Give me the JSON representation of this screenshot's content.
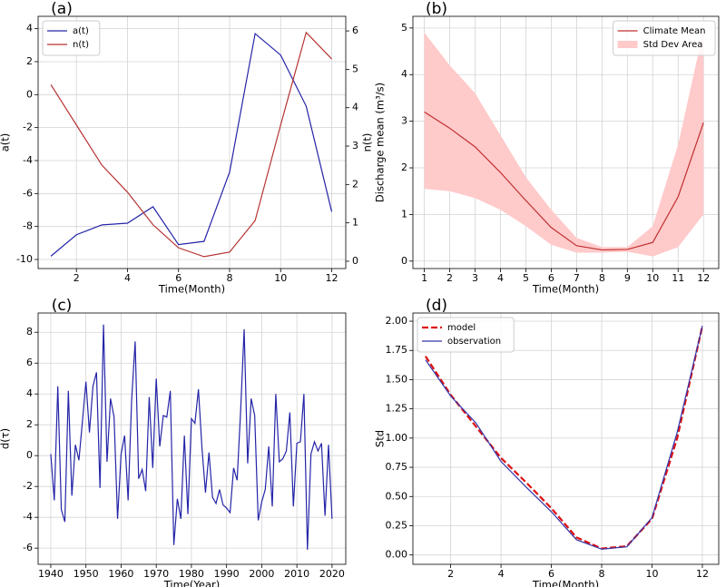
{
  "chart_data": [
    {
      "type": "line",
      "label": "(a)",
      "x_label": "Time(Month)",
      "y_label": "a(t)",
      "y2_label": "n(t)",
      "x": [
        1,
        2,
        3,
        4,
        5,
        6,
        7,
        8,
        9,
        10,
        11,
        12
      ],
      "series": [
        {
          "name": "a(t)",
          "color": "#2424a8",
          "values": [
            -9.8,
            -8.5,
            -7.9,
            -7.8,
            -6.8,
            -9.1,
            -8.9,
            -4.7,
            3.7,
            2.4,
            -0.7,
            -7.1
          ]
        },
        {
          "name": "n(t)",
          "color": "#b83232",
          "axis": "y2",
          "values": [
            4.6,
            3.55,
            2.5,
            1.8,
            0.95,
            0.35,
            0.12,
            0.24,
            1.06,
            3.55,
            5.96,
            5.27
          ]
        }
      ],
      "xlim": [
        0.5,
        12.55
      ],
      "xticks": [
        2,
        4,
        6,
        8,
        10,
        12
      ],
      "ylim": [
        -10.55,
        4.75
      ],
      "yticks": [
        -10,
        -8,
        -6,
        -4,
        -2,
        0,
        2,
        4
      ],
      "y2lim": [
        -0.19,
        6.38
      ],
      "y2ticks": [
        0,
        1,
        2,
        3,
        4,
        5,
        6
      ],
      "grid": true,
      "legend": "upper left"
    },
    {
      "type": "line",
      "label": "(b)",
      "x_label": "Time(Month)",
      "y_label": "Discharge mean (m³/s)",
      "x": [
        1,
        2,
        3,
        4,
        5,
        6,
        7,
        8,
        9,
        10,
        11,
        12
      ],
      "series": [
        {
          "name": "Climate Mean",
          "color": "#c03030",
          "values": [
            3.2,
            2.85,
            2.45,
            1.9,
            1.3,
            0.72,
            0.33,
            0.24,
            0.25,
            0.4,
            1.38,
            2.97
          ]
        },
        {
          "name": "Std Dev Area",
          "color": "#ffcaca",
          "upper": [
            4.9,
            4.2,
            3.6,
            2.7,
            1.8,
            1.1,
            0.5,
            0.3,
            0.3,
            0.75,
            2.5,
            4.95
          ],
          "lower": [
            1.55,
            1.5,
            1.35,
            1.1,
            0.75,
            0.35,
            0.18,
            0.18,
            0.2,
            0.1,
            0.3,
            1.0
          ]
        }
      ],
      "xlim": [
        0.55,
        12.6
      ],
      "xticks": [
        1,
        2,
        3,
        4,
        5,
        6,
        7,
        8,
        9,
        10,
        11,
        12
      ],
      "ylim": [
        -0.16,
        5.25
      ],
      "yticks": [
        0,
        1,
        2,
        3,
        4,
        5
      ],
      "grid": true,
      "legend": "upper right"
    },
    {
      "type": "line",
      "label": "(c)",
      "x_label": "Time(Year)",
      "y_label": "d(τ)",
      "x": [
        1940,
        1941,
        1942,
        1943,
        1944,
        1945,
        1946,
        1947,
        1948,
        1949,
        1950,
        1951,
        1952,
        1953,
        1954,
        1955,
        1956,
        1957,
        1958,
        1959,
        1960,
        1961,
        1962,
        1963,
        1964,
        1965,
        1966,
        1967,
        1968,
        1969,
        1970,
        1971,
        1972,
        1973,
        1974,
        1975,
        1976,
        1977,
        1978,
        1979,
        1980,
        1981,
        1982,
        1983,
        1984,
        1985,
        1986,
        1987,
        1988,
        1989,
        1990,
        1991,
        1992,
        1993,
        1994,
        1995,
        1996,
        1997,
        1998,
        1999,
        2000,
        2001,
        2002,
        2003,
        2004,
        2005,
        2006,
        2007,
        2008,
        2009,
        2010,
        2011,
        2012,
        2013,
        2014,
        2015,
        2016,
        2017,
        2018,
        2019,
        2020
      ],
      "series": [
        {
          "name": "d(τ)",
          "color": "#2424a8",
          "values": [
            0.1,
            -2.9,
            4.5,
            -3.5,
            -4.3,
            4.2,
            -2.6,
            0.7,
            -0.3,
            2.2,
            4.8,
            1.5,
            4.5,
            5.4,
            -2.1,
            8.5,
            -0.4,
            3.7,
            2.5,
            -4.1,
            0.1,
            1.3,
            -2.9,
            3.6,
            7.4,
            -1.5,
            -0.9,
            -2.3,
            3.8,
            -0.8,
            5.0,
            0.6,
            2.6,
            2.5,
            4.2,
            -5.8,
            -2.8,
            -4.1,
            1.3,
            -3.8,
            2.4,
            2.1,
            4.3,
            0.5,
            -2.4,
            0.2,
            -2.7,
            -3.1,
            -2.2,
            -3.2,
            -3.4,
            -3.7,
            -0.8,
            -1.6,
            2.9,
            8.2,
            -0.5,
            3.7,
            2.6,
            -4.2,
            -3.0,
            -2.2,
            0.6,
            -3.3,
            4.0,
            -0.4,
            -0.2,
            0.3,
            2.8,
            -3.3,
            0.8,
            0.9,
            4.0,
            -6.1,
            0.1,
            0.9,
            0.3,
            0.8,
            -3.9,
            0.7,
            -4.1
          ]
        }
      ],
      "xlim": [
        1936.4,
        2023.9
      ],
      "xticks": [
        1940,
        1950,
        1960,
        1970,
        1980,
        1990,
        2000,
        2010,
        2020
      ],
      "ylim": [
        -7.05,
        9.25
      ],
      "yticks": [
        -6,
        -4,
        -2,
        0,
        2,
        4,
        6,
        8
      ],
      "grid": true
    },
    {
      "type": "line",
      "label": "(d)",
      "x_label": "Time(Month)",
      "y_label": "Std",
      "x": [
        1,
        2,
        3,
        4,
        5,
        6,
        7,
        8,
        9,
        10,
        11,
        12
      ],
      "series": [
        {
          "name": "model",
          "color": "#dd1111",
          "style": "dashed",
          "values": [
            1.7,
            1.37,
            1.1,
            0.83,
            0.62,
            0.4,
            0.15,
            0.055,
            0.075,
            0.31,
            1.0,
            1.96
          ]
        },
        {
          "name": "observation",
          "color": "#3333aa",
          "values": [
            1.67,
            1.36,
            1.13,
            0.8,
            0.58,
            0.37,
            0.13,
            0.05,
            0.07,
            0.32,
            1.05,
            1.96
          ]
        }
      ],
      "xlim": [
        0.5,
        12.65
      ],
      "xticks": [
        2,
        4,
        6,
        8,
        10,
        12
      ],
      "ylim": [
        -0.08,
        2.07
      ],
      "yticks": [
        {
          "value": 0,
          "label": "0.00"
        },
        {
          "value": 0.25,
          "label": "0.25"
        },
        {
          "value": 0.5,
          "label": "0.50"
        },
        {
          "value": 0.75,
          "label": "0.75"
        },
        {
          "value": 1,
          "label": "1.00"
        },
        {
          "value": 1.25,
          "label": "1.25"
        },
        {
          "value": 1.5,
          "label": "1.50"
        },
        {
          "value": 1.75,
          "label": "1.75"
        },
        {
          "value": 2,
          "label": "2.00"
        }
      ],
      "grid": true,
      "legend": "upper left"
    }
  ]
}
